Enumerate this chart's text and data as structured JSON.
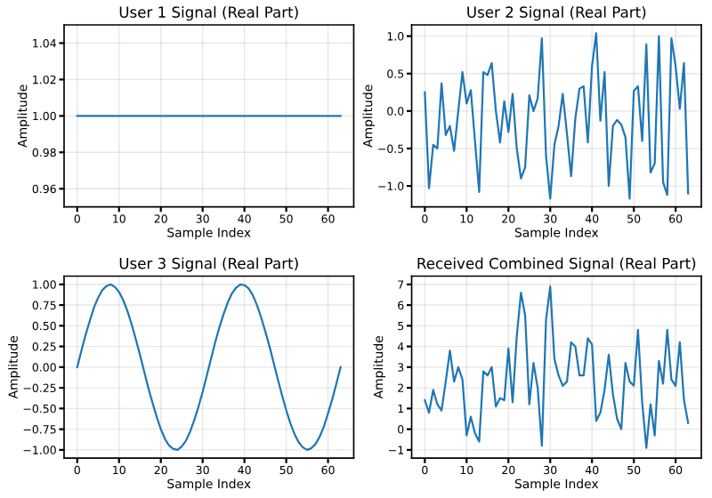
{
  "chart_data": [
    {
      "type": "line",
      "title": "User 1 Signal (Real Part)",
      "xlabel": "Sample Index",
      "ylabel": "Amplitude",
      "grid": true,
      "xlim": [
        -3.15,
        66.15
      ],
      "ylim": [
        0.95,
        1.05
      ],
      "xticks": [
        0,
        10,
        20,
        30,
        40,
        50,
        60
      ],
      "yticks": [
        {
          "value": 0.96,
          "label": "0.96"
        },
        {
          "value": 0.98,
          "label": "0.98"
        },
        {
          "value": 1.0,
          "label": "1.00"
        },
        {
          "value": 1.02,
          "label": "1.02"
        },
        {
          "value": 1.04,
          "label": "1.04"
        }
      ],
      "x": [
        0,
        63
      ],
      "series": [
        {
          "color": "#1f77b4",
          "values": [
            1.0,
            1.0
          ]
        }
      ]
    },
    {
      "type": "line",
      "title": "User 2 Signal (Real Part)",
      "xlabel": "Sample Index",
      "ylabel": "Amplitude",
      "grid": true,
      "xlim": [
        -3.15,
        66.15
      ],
      "ylim": [
        -1.28,
        1.15
      ],
      "xticks": [
        0,
        10,
        20,
        30,
        40,
        50,
        60
      ],
      "yticks": [
        {
          "value": -1.0,
          "label": "−1.0"
        },
        {
          "value": -0.5,
          "label": "−0.5"
        },
        {
          "value": 0.0,
          "label": "0.0"
        },
        {
          "value": 0.5,
          "label": "0.5"
        },
        {
          "value": 1.0,
          "label": "1.0"
        }
      ],
      "x": [
        0,
        1,
        2,
        3,
        4,
        5,
        6,
        7,
        8,
        9,
        10,
        11,
        12,
        13,
        14,
        15,
        16,
        17,
        18,
        19,
        20,
        21,
        22,
        23,
        24,
        25,
        26,
        27,
        28,
        29,
        30,
        31,
        32,
        33,
        34,
        35,
        36,
        37,
        38,
        39,
        40,
        41,
        42,
        43,
        44,
        45,
        46,
        47,
        48,
        49,
        50,
        51,
        52,
        53,
        54,
        55,
        56,
        57,
        58,
        59,
        60,
        61,
        62,
        63
      ],
      "series": [
        {
          "color": "#1f77b4",
          "values": [
            0.25,
            -1.03,
            -0.45,
            -0.5,
            0.37,
            -0.32,
            -0.2,
            -0.53,
            0.0,
            0.52,
            0.1,
            0.28,
            -0.4,
            -1.08,
            0.52,
            0.48,
            0.64,
            0.0,
            -0.42,
            0.13,
            -0.28,
            0.23,
            -0.5,
            -0.9,
            -0.75,
            0.21,
            0.0,
            0.17,
            0.97,
            -0.6,
            -1.17,
            -0.45,
            -0.2,
            0.23,
            -0.3,
            -0.87,
            -0.1,
            0.3,
            0.33,
            -0.42,
            0.6,
            1.04,
            -0.13,
            0.52,
            -1.0,
            -0.2,
            -0.12,
            -0.18,
            -0.35,
            -1.17,
            0.27,
            0.33,
            -0.4,
            0.89,
            -0.82,
            -0.7,
            1.0,
            -0.95,
            -1.12,
            0.97,
            0.6,
            0.03,
            0.64,
            -1.1
          ]
        }
      ]
    },
    {
      "type": "line",
      "title": "User 3 Signal (Real Part)",
      "xlabel": "Sample Index",
      "ylabel": "Amplitude",
      "grid": true,
      "xlim": [
        -3.15,
        66.15
      ],
      "ylim": [
        -1.1,
        1.1
      ],
      "xticks": [
        0,
        10,
        20,
        30,
        40,
        50,
        60
      ],
      "yticks": [
        {
          "value": -1.0,
          "label": "−1.00"
        },
        {
          "value": -0.75,
          "label": "−0.75"
        },
        {
          "value": -0.5,
          "label": "−0.50"
        },
        {
          "value": -0.25,
          "label": "−0.25"
        },
        {
          "value": 0.0,
          "label": "0.00"
        },
        {
          "value": 0.25,
          "label": "0.25"
        },
        {
          "value": 0.5,
          "label": "0.50"
        },
        {
          "value": 0.75,
          "label": "0.75"
        },
        {
          "value": 1.0,
          "label": "1.00"
        }
      ],
      "x": [
        0,
        1,
        2,
        3,
        4,
        5,
        6,
        7,
        8,
        9,
        10,
        11,
        12,
        13,
        14,
        15,
        16,
        17,
        18,
        19,
        20,
        21,
        22,
        23,
        24,
        25,
        26,
        27,
        28,
        29,
        30,
        31,
        32,
        33,
        34,
        35,
        36,
        37,
        38,
        39,
        40,
        41,
        42,
        43,
        44,
        45,
        46,
        47,
        48,
        49,
        50,
        51,
        52,
        53,
        54,
        55,
        56,
        57,
        58,
        59,
        60,
        61,
        62,
        63
      ],
      "series": [
        {
          "color": "#1f77b4",
          "values": [
            0.0,
            0.2,
            0.39,
            0.56,
            0.72,
            0.84,
            0.93,
            0.98,
            1.0,
            0.97,
            0.91,
            0.81,
            0.68,
            0.52,
            0.34,
            0.15,
            -0.05,
            -0.25,
            -0.43,
            -0.6,
            -0.75,
            -0.87,
            -0.95,
            -0.99,
            -1.0,
            -0.96,
            -0.89,
            -0.78,
            -0.64,
            -0.48,
            -0.3,
            -0.1,
            0.1,
            0.3,
            0.48,
            0.64,
            0.78,
            0.89,
            0.96,
            1.0,
            0.99,
            0.95,
            0.87,
            0.75,
            0.6,
            0.43,
            0.25,
            0.05,
            -0.15,
            -0.34,
            -0.52,
            -0.68,
            -0.81,
            -0.91,
            -0.97,
            -1.0,
            -0.98,
            -0.93,
            -0.84,
            -0.72,
            -0.56,
            -0.39,
            -0.2,
            0.0
          ]
        }
      ]
    },
    {
      "type": "line",
      "title": "Received Combined Signal (Real Part)",
      "xlabel": "Sample Index",
      "ylabel": "Amplitude",
      "grid": true,
      "xlim": [
        -3.15,
        66.15
      ],
      "ylim": [
        -1.4,
        7.4
      ],
      "xticks": [
        0,
        10,
        20,
        30,
        40,
        50,
        60
      ],
      "yticks": [
        {
          "value": -1,
          "label": "−1"
        },
        0,
        1,
        2,
        3,
        4,
        5,
        6,
        7
      ],
      "x": [
        0,
        1,
        2,
        3,
        4,
        5,
        6,
        7,
        8,
        9,
        10,
        11,
        12,
        13,
        14,
        15,
        16,
        17,
        18,
        19,
        20,
        21,
        22,
        23,
        24,
        25,
        26,
        27,
        28,
        29,
        30,
        31,
        32,
        33,
        34,
        35,
        36,
        37,
        38,
        39,
        40,
        41,
        42,
        43,
        44,
        45,
        46,
        47,
        48,
        49,
        50,
        51,
        52,
        53,
        54,
        55,
        56,
        57,
        58,
        59,
        60,
        61,
        62,
        63
      ],
      "series": [
        {
          "color": "#1f77b4",
          "values": [
            1.4,
            0.8,
            1.9,
            1.2,
            0.9,
            2.3,
            3.8,
            2.3,
            3.0,
            2.4,
            -0.3,
            0.6,
            -0.2,
            -0.6,
            2.8,
            2.6,
            3.0,
            1.1,
            1.5,
            1.4,
            3.9,
            1.3,
            4.5,
            6.6,
            5.5,
            1.2,
            3.2,
            2.0,
            -0.8,
            5.3,
            6.9,
            3.4,
            2.6,
            2.1,
            2.3,
            4.2,
            4.0,
            2.6,
            2.6,
            4.4,
            4.1,
            0.4,
            0.8,
            1.9,
            3.6,
            1.7,
            0.5,
            0.0,
            3.2,
            2.3,
            2.1,
            4.8,
            1.3,
            -0.9,
            1.2,
            -0.3,
            3.3,
            2.2,
            4.8,
            2.4,
            2.1,
            4.2,
            1.4,
            0.3
          ]
        }
      ]
    }
  ]
}
